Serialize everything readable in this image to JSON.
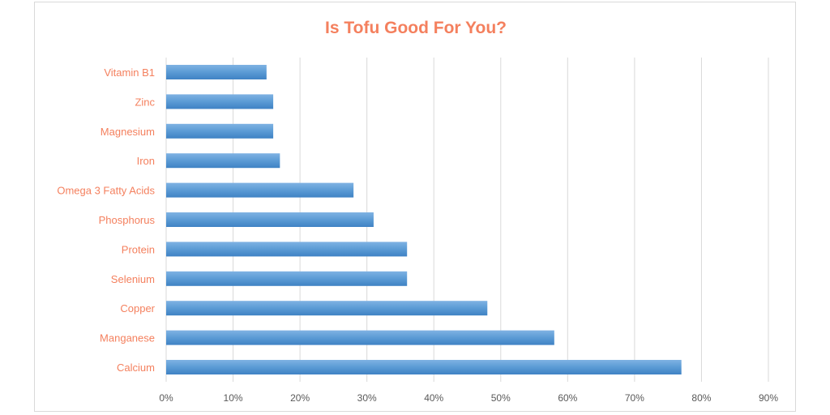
{
  "chart_data": {
    "type": "bar",
    "orientation": "horizontal",
    "title": "Is Tofu Good For You?",
    "xlabel": "",
    "ylabel": "",
    "categories": [
      "Vitamin B1",
      "Zinc",
      "Magnesium",
      "Iron",
      "Omega 3 Fatty Acids",
      "Phosphorus",
      "Protein",
      "Selenium",
      "Copper",
      "Manganese",
      "Calcium"
    ],
    "values": [
      0.15,
      0.16,
      0.16,
      0.17,
      0.28,
      0.31,
      0.36,
      0.36,
      0.48,
      0.58,
      0.77
    ],
    "xlim": [
      0,
      0.9
    ],
    "xticks": [
      "0%",
      "10%",
      "20%",
      "30%",
      "40%",
      "50%",
      "60%",
      "70%",
      "80%",
      "90%"
    ],
    "grid": "vertical",
    "legend": "none",
    "colors": {
      "bar": "#5b9bd5",
      "title": "#f4805e",
      "category_label": "#f4805e",
      "tick_label": "#595959",
      "gridline": "#d9d9d9"
    }
  }
}
